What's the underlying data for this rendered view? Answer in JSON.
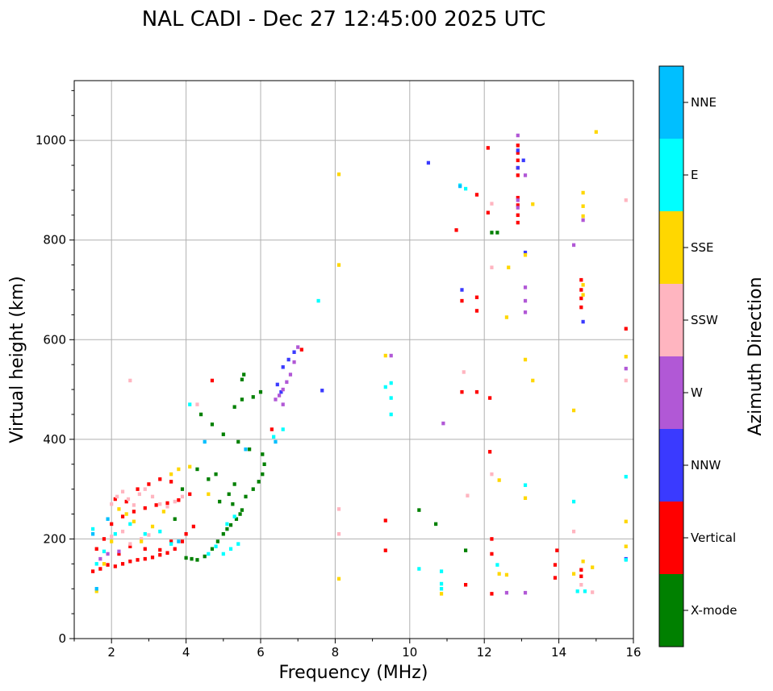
{
  "chart_data": {
    "type": "scatter",
    "title": "NAL CADI - Dec 27 12:45:00 2025 UTC",
    "xlabel": "Frequency (MHz)",
    "ylabel": "Virtual height (km)",
    "xlim": [
      1,
      16
    ],
    "ylim": [
      0,
      1120
    ],
    "x_ticks": [
      2,
      4,
      6,
      8,
      10,
      12,
      14,
      16
    ],
    "y_ticks": [
      0,
      200,
      400,
      600,
      800,
      1000
    ],
    "x_tick_labels": [
      "2",
      "4",
      "6",
      "8",
      "10",
      "12",
      "14",
      "16"
    ],
    "y_tick_labels": [
      "0",
      "200",
      "400",
      "600",
      "800",
      "1000"
    ],
    "grid": true,
    "colorbar": {
      "label": "Azimuth Direction",
      "categories": [
        "X-mode",
        "Vertical",
        "NNW",
        "W",
        "SSW",
        "SSE",
        "E",
        "NNE"
      ],
      "colors": [
        "#008000",
        "#ff0000",
        "#3a3aff",
        "#b158d6",
        "#ffb5c0",
        "#ffd700",
        "#00ffff",
        "#00bfff"
      ]
    },
    "series": [
      {
        "name": "X-mode",
        "points": [
          [
            4.0,
            162
          ],
          [
            4.15,
            160
          ],
          [
            4.3,
            158
          ],
          [
            4.5,
            165
          ],
          [
            4.7,
            180
          ],
          [
            4.85,
            195
          ],
          [
            5.0,
            210
          ],
          [
            5.1,
            220
          ],
          [
            5.2,
            228
          ],
          [
            5.35,
            240
          ],
          [
            5.45,
            250
          ],
          [
            5.5,
            258
          ],
          [
            5.25,
            270
          ],
          [
            5.6,
            285
          ],
          [
            5.8,
            300
          ],
          [
            5.95,
            315
          ],
          [
            6.05,
            330
          ],
          [
            6.1,
            350
          ],
          [
            6.05,
            370
          ],
          [
            5.7,
            380
          ],
          [
            5.4,
            395
          ],
          [
            5.0,
            410
          ],
          [
            4.7,
            430
          ],
          [
            4.4,
            450
          ],
          [
            5.3,
            465
          ],
          [
            5.5,
            480
          ],
          [
            5.8,
            485
          ],
          [
            6.0,
            495
          ],
          [
            5.5,
            520
          ],
          [
            5.55,
            530
          ],
          [
            4.8,
            330
          ],
          [
            4.6,
            320
          ],
          [
            4.9,
            275
          ],
          [
            5.15,
            290
          ],
          [
            5.3,
            310
          ],
          [
            4.3,
            340
          ],
          [
            3.9,
            300
          ],
          [
            3.7,
            240
          ],
          [
            10.25,
            258
          ],
          [
            10.7,
            230
          ],
          [
            11.5,
            177
          ],
          [
            12.2,
            815
          ],
          [
            12.35,
            815
          ]
        ]
      },
      {
        "name": "Vertical",
        "points": [
          [
            1.5,
            135
          ],
          [
            1.7,
            140
          ],
          [
            1.9,
            148
          ],
          [
            2.1,
            145
          ],
          [
            2.3,
            150
          ],
          [
            2.5,
            155
          ],
          [
            2.7,
            158
          ],
          [
            2.9,
            160
          ],
          [
            3.1,
            163
          ],
          [
            3.3,
            168
          ],
          [
            3.5,
            172
          ],
          [
            3.7,
            180
          ],
          [
            3.9,
            195
          ],
          [
            4.0,
            210
          ],
          [
            4.2,
            225
          ],
          [
            1.6,
            180
          ],
          [
            1.8,
            200
          ],
          [
            2.0,
            230
          ],
          [
            2.3,
            245
          ],
          [
            2.6,
            255
          ],
          [
            2.9,
            262
          ],
          [
            3.2,
            268
          ],
          [
            3.5,
            272
          ],
          [
            3.8,
            278
          ],
          [
            4.1,
            290
          ],
          [
            2.1,
            280
          ],
          [
            2.4,
            275
          ],
          [
            2.7,
            300
          ],
          [
            3.0,
            310
          ],
          [
            3.3,
            320
          ],
          [
            3.6,
            315
          ],
          [
            2.2,
            170
          ],
          [
            2.5,
            185
          ],
          [
            2.9,
            180
          ],
          [
            3.3,
            178
          ],
          [
            3.6,
            195
          ],
          [
            4.7,
            518
          ],
          [
            6.3,
            420
          ],
          [
            7.1,
            580
          ],
          [
            9.35,
            237
          ],
          [
            9.35,
            177
          ],
          [
            11.25,
            820
          ],
          [
            11.4,
            495
          ],
          [
            11.4,
            678
          ],
          [
            11.8,
            685
          ],
          [
            11.8,
            658
          ],
          [
            11.8,
            495
          ],
          [
            11.8,
            891
          ],
          [
            12.1,
            985
          ],
          [
            12.1,
            855
          ],
          [
            12.15,
            483
          ],
          [
            12.15,
            375
          ],
          [
            12.2,
            200
          ],
          [
            12.2,
            170
          ],
          [
            12.2,
            90
          ],
          [
            11.5,
            108
          ],
          [
            13.95,
            177
          ],
          [
            13.9,
            148
          ],
          [
            13.9,
            122
          ],
          [
            14.6,
            720
          ],
          [
            14.6,
            700
          ],
          [
            14.6,
            683
          ],
          [
            14.6,
            665
          ],
          [
            14.6,
            138
          ],
          [
            14.6,
            125
          ],
          [
            15.8,
            622
          ],
          [
            12.9,
            990
          ],
          [
            12.9,
            975
          ],
          [
            12.9,
            960
          ],
          [
            12.9,
            945
          ],
          [
            12.9,
            930
          ],
          [
            12.9,
            885
          ],
          [
            12.9,
            870
          ],
          [
            12.9,
            850
          ],
          [
            12.9,
            835
          ]
        ]
      },
      {
        "name": "NNW",
        "points": [
          [
            6.6,
            545
          ],
          [
            6.75,
            560
          ],
          [
            6.9,
            575
          ],
          [
            6.45,
            510
          ],
          [
            6.55,
            495
          ],
          [
            7.65,
            498
          ],
          [
            10.5,
            955
          ],
          [
            12.9,
            980
          ],
          [
            13.05,
            960
          ],
          [
            12.9,
            945
          ],
          [
            14.65,
            636
          ],
          [
            15.8,
            160
          ],
          [
            11.4,
            700
          ],
          [
            13.1,
            775
          ]
        ]
      },
      {
        "name": "W",
        "points": [
          [
            6.4,
            480
          ],
          [
            6.5,
            488
          ],
          [
            6.6,
            500
          ],
          [
            6.7,
            515
          ],
          [
            6.8,
            530
          ],
          [
            6.9,
            555
          ],
          [
            7.0,
            585
          ],
          [
            6.6,
            470
          ],
          [
            9.5,
            568
          ],
          [
            10.9,
            432
          ],
          [
            12.9,
            1010
          ],
          [
            12.9,
            880
          ],
          [
            12.9,
            865
          ],
          [
            12.6,
            92
          ],
          [
            13.1,
            92
          ],
          [
            13.1,
            930
          ],
          [
            13.1,
            705
          ],
          [
            13.1,
            678
          ],
          [
            13.1,
            655
          ],
          [
            14.65,
            840
          ],
          [
            14.4,
            790
          ],
          [
            15.8,
            542
          ],
          [
            1.7,
            160
          ],
          [
            1.9,
            170
          ],
          [
            2.2,
            175
          ]
        ]
      },
      {
        "name": "SSW",
        "points": [
          [
            2.0,
            270
          ],
          [
            2.15,
            285
          ],
          [
            2.3,
            295
          ],
          [
            2.45,
            280
          ],
          [
            2.6,
            268
          ],
          [
            2.75,
            290
          ],
          [
            2.9,
            300
          ],
          [
            3.1,
            285
          ],
          [
            3.3,
            270
          ],
          [
            3.5,
            265
          ],
          [
            3.7,
            275
          ],
          [
            3.9,
            285
          ],
          [
            2.0,
            205
          ],
          [
            2.3,
            215
          ],
          [
            2.5,
            190
          ],
          [
            2.8,
            200
          ],
          [
            3.0,
            208
          ],
          [
            8.1,
            260
          ],
          [
            8.1,
            210
          ],
          [
            11.45,
            535
          ],
          [
            11.55,
            287
          ],
          [
            12.2,
            330
          ],
          [
            12.2,
            745
          ],
          [
            12.2,
            873
          ],
          [
            14.4,
            215
          ],
          [
            14.6,
            108
          ],
          [
            14.9,
            93
          ],
          [
            15.8,
            880
          ],
          [
            15.8,
            518
          ],
          [
            2.5,
            518
          ],
          [
            4.3,
            470
          ]
        ]
      },
      {
        "name": "SSE",
        "points": [
          [
            1.6,
            95
          ],
          [
            1.8,
            150
          ],
          [
            2.0,
            195
          ],
          [
            2.2,
            260
          ],
          [
            2.4,
            250
          ],
          [
            2.6,
            235
          ],
          [
            2.8,
            195
          ],
          [
            3.1,
            225
          ],
          [
            3.4,
            255
          ],
          [
            3.6,
            330
          ],
          [
            3.8,
            340
          ],
          [
            4.1,
            345
          ],
          [
            4.6,
            290
          ],
          [
            8.1,
            932
          ],
          [
            8.1,
            750
          ],
          [
            8.1,
            120
          ],
          [
            9.35,
            568
          ],
          [
            10.85,
            90
          ],
          [
            12.4,
            318
          ],
          [
            12.4,
            130
          ],
          [
            12.6,
            128
          ],
          [
            12.6,
            645
          ],
          [
            12.65,
            745
          ],
          [
            13.1,
            770
          ],
          [
            13.1,
            560
          ],
          [
            13.1,
            282
          ],
          [
            13.3,
            518
          ],
          [
            13.3,
            872
          ],
          [
            14.4,
            458
          ],
          [
            14.4,
            130
          ],
          [
            14.65,
            895
          ],
          [
            14.65,
            868
          ],
          [
            14.65,
            848
          ],
          [
            14.65,
            710
          ],
          [
            14.65,
            690
          ],
          [
            14.65,
            155
          ],
          [
            14.9,
            143
          ],
          [
            15.0,
            1017
          ],
          [
            15.8,
            566
          ],
          [
            15.8,
            235
          ],
          [
            15.8,
            185
          ]
        ]
      },
      {
        "name": "E",
        "points": [
          [
            1.5,
            220
          ],
          [
            1.6,
            150
          ],
          [
            1.8,
            175
          ],
          [
            2.1,
            210
          ],
          [
            2.5,
            230
          ],
          [
            2.9,
            210
          ],
          [
            3.3,
            215
          ],
          [
            3.6,
            190
          ],
          [
            4.1,
            470
          ],
          [
            4.6,
            170
          ],
          [
            4.8,
            185
          ],
          [
            5.0,
            170
          ],
          [
            5.2,
            180
          ],
          [
            5.4,
            190
          ],
          [
            5.1,
            230
          ],
          [
            5.3,
            245
          ],
          [
            6.35,
            405
          ],
          [
            6.6,
            420
          ],
          [
            7.55,
            678
          ],
          [
            9.35,
            505
          ],
          [
            9.5,
            513
          ],
          [
            9.5,
            483
          ],
          [
            9.5,
            450
          ],
          [
            10.25,
            140
          ],
          [
            10.85,
            135
          ],
          [
            10.85,
            110
          ],
          [
            10.85,
            100
          ],
          [
            11.35,
            910
          ],
          [
            11.5,
            903
          ],
          [
            12.35,
            148
          ],
          [
            13.1,
            308
          ],
          [
            14.4,
            275
          ],
          [
            14.5,
            95
          ],
          [
            14.7,
            95
          ],
          [
            15.8,
            325
          ],
          [
            15.8,
            158
          ]
        ]
      },
      {
        "name": "NNE",
        "points": [
          [
            1.5,
            210
          ],
          [
            1.6,
            100
          ],
          [
            1.9,
            240
          ],
          [
            3.8,
            195
          ],
          [
            4.5,
            395
          ],
          [
            11.35,
            908
          ],
          [
            5.6,
            380
          ],
          [
            6.4,
            395
          ]
        ]
      }
    ]
  }
}
